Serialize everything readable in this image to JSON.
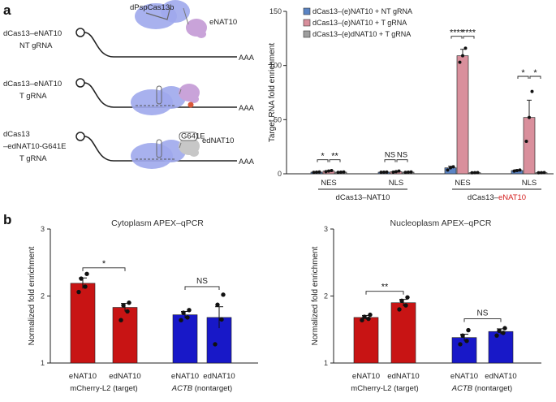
{
  "panel_a": {
    "letter": "a",
    "schematic": {
      "rows": [
        {
          "label_lines": [
            "dCas13–eNAT10"
          ],
          "sub_line": "NT gRNA",
          "sub_color": "#8a8a8a",
          "tail": "AAA",
          "guide": false,
          "enzyme": "eNAT10",
          "enzyme_color": "#c9a3d9",
          "cas_label": "dPspCas13b"
        },
        {
          "label_lines": [
            "dCas13–eNAT10"
          ],
          "sub_line": "T gRNA",
          "sub_color": "#d42020",
          "tail": "AAA",
          "guide": true,
          "enzyme": "",
          "enzyme_color": "#c9a3d9"
        },
        {
          "label_lines": [
            "dCas13",
            "–edNAT10-G641E"
          ],
          "sub_line": "T gRNA",
          "sub_color": "#d42020",
          "tail": "AAA",
          "guide": true,
          "enzyme": "edNAT10",
          "enzyme_color": "#c7c7c7",
          "mutation_tag": "G641E"
        }
      ]
    }
  },
  "panel_b": {
    "letter": "b",
    "group_labels": {
      "mcherry": "mCherry-L2 (target)",
      "actb_italic": "ACTB",
      "actb_rest": " (nontarget)"
    }
  },
  "colors": {
    "nt_blue": "#5b84c4",
    "t_pink": "#d98f9c",
    "dead_gray": "#9e9e9e",
    "red": "#c81414",
    "blue": "#1818c8",
    "cas_purple": "#9fa9ec",
    "text_red": "#d42020"
  },
  "chart_data": [
    {
      "id": "a-right",
      "type": "bar",
      "ylabel": "Target RNA fold enrichment",
      "ylim": [
        0,
        150
      ],
      "yticks": [
        0,
        50,
        100,
        150
      ],
      "legend_position": "top-left",
      "legend": [
        {
          "name": "dCas13–(e)NAT10 + NT gRNA",
          "color": "#5b84c4"
        },
        {
          "name": "dCas13–(e)NAT10 + T gRNA",
          "color": "#d98f9c"
        },
        {
          "name": "dCas13–(e)dNAT10 + T gRNA",
          "color": "#9e9e9e"
        }
      ],
      "subgroups": [
        "NES",
        "NLS",
        "NES",
        "NLS"
      ],
      "groups": [
        {
          "label": "dCas13–NAT10",
          "label_parts": [
            {
              "text": "dCas13–NAT10",
              "color": "#222222"
            }
          ]
        },
        {
          "label": "dCas13–eNAT10",
          "label_parts": [
            {
              "text": "dCas13–",
              "color": "#222222"
            },
            {
              "text": "eNAT10",
              "color": "#d42020"
            }
          ]
        }
      ],
      "series": [
        {
          "name": "dCas13–(e)NAT10 + NT gRNA",
          "values": [
            1.5,
            1.5,
            5.5,
            3
          ],
          "err": [
            0.4,
            0.3,
            1.5,
            0.8
          ],
          "points": [
            [
              1.3,
              1.5,
              1.7
            ],
            [
              1.4,
              1.5,
              1.6
            ],
            [
              3.5,
              5.5,
              6.5
            ],
            [
              2.5,
              3,
              3.5
            ]
          ]
        },
        {
          "name": "dCas13–(e)NAT10 + T gRNA",
          "values": [
            2.5,
            2,
            109,
            52
          ],
          "err": [
            0.5,
            0.5,
            6,
            16
          ],
          "points": [
            [
              2,
              2.5,
              3
            ],
            [
              1.5,
              2,
              2.5
            ],
            [
              103,
              109,
              116
            ],
            [
              30,
              52,
              76
            ]
          ]
        },
        {
          "name": "dCas13–(e)dNAT10 + T gRNA",
          "values": [
            1.5,
            1.5,
            1,
            1
          ],
          "err": [
            0.3,
            0.3,
            0.2,
            0.2
          ],
          "points": [
            [
              1.3,
              1.5,
              1.7
            ],
            [
              1.3,
              1.5,
              1.7
            ],
            [
              0.9,
              1,
              1.1
            ],
            [
              0.9,
              1,
              1.1
            ]
          ]
        }
      ],
      "significance": [
        {
          "sub": 0,
          "from": 0,
          "to": 1,
          "label": "*",
          "y": 13
        },
        {
          "sub": 0,
          "from": 1,
          "to": 2,
          "label": "**",
          "y": 13
        },
        {
          "sub": 1,
          "from": 0,
          "to": 1,
          "label": "NS",
          "y": 13
        },
        {
          "sub": 1,
          "from": 1,
          "to": 2,
          "label": "NS",
          "y": 13
        },
        {
          "sub": 2,
          "from": 0,
          "to": 1,
          "label": "****",
          "y": 127
        },
        {
          "sub": 2,
          "from": 1,
          "to": 2,
          "label": "****",
          "y": 127
        },
        {
          "sub": 3,
          "from": 0,
          "to": 1,
          "label": "*",
          "y": 90
        },
        {
          "sub": 3,
          "from": 1,
          "to": 2,
          "label": "*",
          "y": 90
        }
      ]
    },
    {
      "id": "b-left",
      "type": "bar",
      "title": "Cytoplasm APEX–qPCR",
      "ylabel": "Normalized fold enrichment",
      "ylim": [
        1,
        3
      ],
      "yticks": [
        1,
        2,
        3
      ],
      "categories": [
        "eNAT10",
        "edNAT10",
        "eNAT10",
        "edNAT10"
      ],
      "colors": [
        "#c81414",
        "#c81414",
        "#1818c8",
        "#1818c8"
      ],
      "values": [
        2.19,
        1.83,
        1.72,
        1.68
      ],
      "err": [
        0.08,
        0.06,
        0.05,
        0.16
      ],
      "points": [
        [
          2.06,
          2.14,
          2.26,
          2.33
        ],
        [
          1.64,
          1.77,
          1.86,
          1.9
        ],
        [
          1.64,
          1.68,
          1.75,
          1.79
        ],
        [
          1.28,
          1.65,
          1.87,
          2.02
        ]
      ],
      "significance": [
        {
          "from": 0,
          "to": 1,
          "label": "*",
          "y": 2.42
        },
        {
          "from": 2,
          "to": 3,
          "label": "NS",
          "y": 2.14
        }
      ]
    },
    {
      "id": "b-right",
      "type": "bar",
      "title": "Nucleoplasm APEX–qPCR",
      "ylabel": "Normalized fold enrichment",
      "ylim": [
        1,
        3
      ],
      "yticks": [
        1,
        2,
        3
      ],
      "categories": [
        "eNAT10",
        "edNAT10",
        "eNAT10",
        "edNAT10"
      ],
      "colors": [
        "#c81414",
        "#c81414",
        "#1818c8",
        "#1818c8"
      ],
      "values": [
        1.68,
        1.9,
        1.38,
        1.47
      ],
      "err": [
        0.03,
        0.05,
        0.05,
        0.04
      ],
      "points": [
        [
          1.64,
          1.66,
          1.69,
          1.72
        ],
        [
          1.8,
          1.86,
          1.93,
          1.98
        ],
        [
          1.28,
          1.33,
          1.41,
          1.49
        ],
        [
          1.41,
          1.45,
          1.48,
          1.52
        ]
      ],
      "significance": [
        {
          "from": 0,
          "to": 1,
          "label": "**",
          "y": 2.07
        },
        {
          "from": 2,
          "to": 3,
          "label": "NS",
          "y": 1.66
        }
      ]
    }
  ]
}
